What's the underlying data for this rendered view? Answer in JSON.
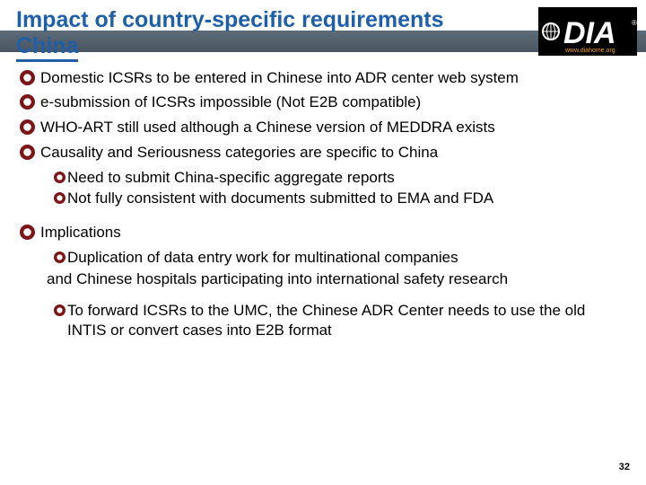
{
  "title_line1": "Impact of country-specific requirements",
  "title_line2": "China",
  "logo": {
    "text": "DIA",
    "subtext": "www.diahome.org",
    "bg_color": "#000000",
    "text_color": "#ffffff",
    "sub_color": "#f6a21a"
  },
  "header_band_color_top": "#5d6c79",
  "header_band_color_bottom": "#4a5661",
  "title_color": "#1f5fa8",
  "bullet_ring_color": "#7c1518",
  "body_text_color": "#000000",
  "body_font_size_pt": 13,
  "bullets": [
    {
      "level": 1,
      "text": "Domestic ICSRs to be entered in Chinese into ADR center web system"
    },
    {
      "level": 1,
      "text": "e-submission of ICSRs impossible (Not E2B compatible)"
    },
    {
      "level": 1,
      "text": "WHO-ART still used although a Chinese version of MEDDRA exists"
    },
    {
      "level": 1,
      "text": "Causality and Seriousness categories are specific to China"
    },
    {
      "level": 2,
      "text": "Need to submit China-specific aggregate reports"
    },
    {
      "level": 2,
      "text": "Not fully consistent with documents submitted to EMA and FDA"
    },
    {
      "level": 0,
      "text": "__gap__"
    },
    {
      "level": 1,
      "text": "Implications"
    },
    {
      "level": 2,
      "text": "Duplication of data entry work for multinational companies"
    },
    {
      "level": -1,
      "text": "and Chinese hospitals participating into international safety research"
    },
    {
      "level": 0,
      "text": "__gap__"
    },
    {
      "level": 2,
      "text": "To forward ICSRs to the UMC, the Chinese ADR Center needs to use the old INTIS or convert cases into E2B format"
    }
  ],
  "page_number": "32"
}
